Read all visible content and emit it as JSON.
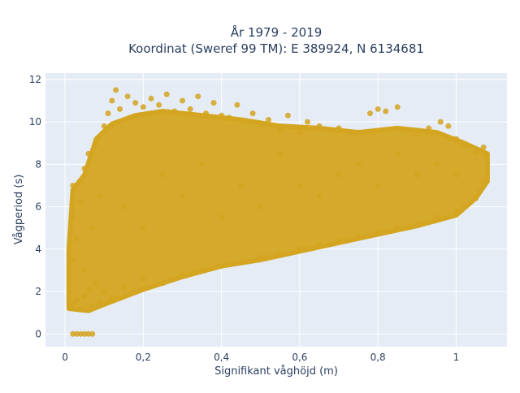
{
  "chart_data": {
    "type": "scatter",
    "title": "År 1979 - 2019",
    "subtitle": "Koordinat (Sweref 99 TM): E 389924, N 6134681",
    "xlabel": "Signifikant våghöjd (m)",
    "ylabel": "Vågperiod (s)",
    "xlim": [
      -0.05,
      1.13
    ],
    "ylim": [
      -0.6,
      12.3
    ],
    "xticks": [
      0,
      0.2,
      0.4,
      0.6,
      0.8,
      1
    ],
    "xtick_labels": [
      "0",
      "0,2",
      "0,4",
      "0,6",
      "0,8",
      "1"
    ],
    "yticks": [
      0,
      2,
      4,
      6,
      8,
      10,
      12
    ],
    "ytick_labels": [
      "0",
      "2",
      "4",
      "6",
      "8",
      "10",
      "12"
    ],
    "grid": true,
    "legend": "none",
    "marker_color": "#D4A520",
    "background_color": "#E5ECF6",
    "series": [
      {
        "values": [
          [
            0.02,
            1.4
          ],
          [
            0.03,
            1.6
          ],
          [
            0.04,
            1.2
          ],
          [
            0.05,
            1.8
          ],
          [
            0.06,
            2.1
          ],
          [
            0.07,
            1.3
          ],
          [
            0.08,
            2.4
          ],
          [
            0.09,
            1.5
          ],
          [
            0.1,
            2.0
          ],
          [
            0.12,
            1.7
          ],
          [
            0.15,
            2.2
          ],
          [
            0.18,
            2.0
          ],
          [
            0.2,
            2.6
          ],
          [
            0.25,
            2.4
          ],
          [
            0.3,
            2.8
          ],
          [
            0.35,
            3.0
          ],
          [
            0.4,
            3.2
          ],
          [
            0.45,
            3.4
          ],
          [
            0.5,
            3.6
          ],
          [
            0.55,
            3.8
          ],
          [
            0.6,
            4.0
          ],
          [
            0.65,
            4.2
          ],
          [
            0.7,
            4.4
          ],
          [
            0.75,
            4.6
          ],
          [
            0.8,
            4.8
          ],
          [
            0.85,
            5.0
          ],
          [
            0.9,
            5.2
          ],
          [
            0.95,
            5.5
          ],
          [
            1.0,
            5.8
          ],
          [
            1.05,
            6.4
          ],
          [
            1.07,
            7.2
          ],
          [
            0.02,
            3.5
          ],
          [
            0.02,
            5.5
          ],
          [
            0.02,
            7.0
          ],
          [
            0.03,
            4.5
          ],
          [
            0.04,
            6.2
          ],
          [
            0.05,
            7.8
          ],
          [
            0.05,
            3.0
          ],
          [
            0.06,
            8.5
          ],
          [
            0.07,
            5.0
          ],
          [
            0.08,
            9.0
          ],
          [
            0.09,
            6.5
          ],
          [
            0.1,
            9.8
          ],
          [
            0.11,
            10.4
          ],
          [
            0.12,
            11.0
          ],
          [
            0.13,
            11.5
          ],
          [
            0.14,
            10.6
          ],
          [
            0.16,
            11.2
          ],
          [
            0.18,
            10.9
          ],
          [
            0.2,
            10.7
          ],
          [
            0.22,
            11.1
          ],
          [
            0.24,
            10.8
          ],
          [
            0.26,
            11.3
          ],
          [
            0.28,
            10.5
          ],
          [
            0.3,
            11.0
          ],
          [
            0.32,
            10.6
          ],
          [
            0.34,
            11.2
          ],
          [
            0.36,
            10.4
          ],
          [
            0.38,
            10.9
          ],
          [
            0.4,
            10.3
          ],
          [
            0.42,
            10.2
          ],
          [
            0.44,
            10.8
          ],
          [
            0.46,
            10.0
          ],
          [
            0.48,
            10.4
          ],
          [
            0.5,
            9.9
          ],
          [
            0.52,
            10.1
          ],
          [
            0.55,
            9.6
          ],
          [
            0.57,
            10.3
          ],
          [
            0.6,
            9.5
          ],
          [
            0.62,
            10.0
          ],
          [
            0.65,
            9.8
          ],
          [
            0.7,
            9.7
          ],
          [
            0.75,
            9.5
          ],
          [
            0.78,
            10.4
          ],
          [
            0.8,
            10.6
          ],
          [
            0.82,
            10.5
          ],
          [
            0.85,
            10.7
          ],
          [
            0.87,
            9.6
          ],
          [
            0.9,
            9.4
          ],
          [
            0.93,
            9.7
          ],
          [
            0.96,
            10.0
          ],
          [
            0.98,
            9.8
          ],
          [
            1.0,
            9.2
          ],
          [
            1.02,
            8.9
          ],
          [
            1.05,
            8.6
          ],
          [
            1.07,
            8.8
          ],
          [
            0.15,
            6.0
          ],
          [
            0.2,
            5.0
          ],
          [
            0.25,
            7.5
          ],
          [
            0.3,
            6.5
          ],
          [
            0.35,
            8.0
          ],
          [
            0.4,
            5.5
          ],
          [
            0.45,
            7.0
          ],
          [
            0.5,
            6.0
          ],
          [
            0.55,
            8.5
          ],
          [
            0.6,
            7.0
          ],
          [
            0.65,
            6.5
          ],
          [
            0.7,
            7.5
          ],
          [
            0.75,
            8.0
          ],
          [
            0.8,
            7.0
          ],
          [
            0.85,
            8.5
          ],
          [
            0.9,
            7.5
          ],
          [
            0.95,
            8.0
          ],
          [
            1.0,
            7.5
          ],
          [
            0.02,
            0.0
          ],
          [
            0.03,
            0.0
          ],
          [
            0.04,
            0.0
          ],
          [
            0.05,
            0.0
          ],
          [
            0.06,
            0.0
          ],
          [
            0.07,
            0.0
          ]
        ]
      }
    ]
  }
}
